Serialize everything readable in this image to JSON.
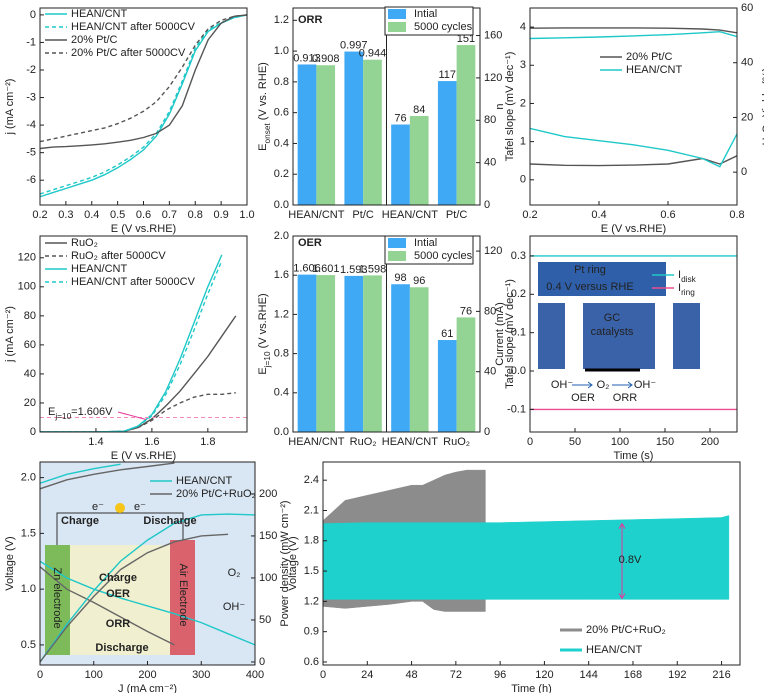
{
  "chart_data": [
    {
      "type": "line",
      "xlabel": "E (V vs.RHE)",
      "ylabel": "j (mA cm⁻²)",
      "x": [
        0.2,
        0.25,
        0.3,
        0.35,
        0.4,
        0.45,
        0.5,
        0.55,
        0.6,
        0.65,
        0.7,
        0.75,
        0.8,
        0.85,
        0.9,
        0.95,
        1.0
      ],
      "xlim": [
        0.2,
        1.0
      ],
      "xticks": [
        0.2,
        0.3,
        0.4,
        0.5,
        0.6,
        0.7,
        0.8,
        0.9,
        {
          "value": 1.0,
          "label": "1.0"
        }
      ],
      "ylim": [
        -6.9,
        0.25
      ],
      "yticks": [
        0,
        -1,
        -2,
        -3,
        -4,
        -5,
        -6
      ],
      "series": [
        {
          "name": "HEAN/CNT",
          "color": "#1fc8c8",
          "dash": false,
          "values": [
            -6.6,
            -6.45,
            -6.3,
            -6.15,
            -6.0,
            -5.8,
            -5.55,
            -5.25,
            -4.9,
            -4.4,
            -3.6,
            -2.5,
            -1.3,
            -0.6,
            -0.3,
            -0.1,
            0
          ]
        },
        {
          "name": "HEAN/CNT after 5000CV",
          "color": "#1fc8c8",
          "dash": true,
          "values": [
            -6.5,
            -6.35,
            -6.2,
            -6.05,
            -5.9,
            -5.7,
            -5.45,
            -5.15,
            -4.8,
            -4.3,
            -3.5,
            -2.4,
            -1.2,
            -0.55,
            -0.28,
            -0.1,
            0
          ]
        },
        {
          "name": "20% Pt/C",
          "color": "#555555",
          "dash": false,
          "values": [
            -4.85,
            -4.8,
            -4.78,
            -4.75,
            -4.72,
            -4.68,
            -4.62,
            -4.55,
            -4.45,
            -4.3,
            -4.0,
            -3.3,
            -2.0,
            -0.9,
            -0.3,
            -0.05,
            0
          ]
        },
        {
          "name": "20% Pt/C after 5000CV",
          "color": "#555555",
          "dash": true,
          "values": [
            -4.6,
            -4.5,
            -4.4,
            -4.3,
            -4.2,
            -4.1,
            -3.95,
            -3.75,
            -3.5,
            -3.15,
            -2.6,
            -1.9,
            -1.1,
            -0.5,
            -0.2,
            -0.05,
            0
          ]
        }
      ]
    },
    {
      "type": "bar",
      "annotations": [
        "ORR"
      ],
      "ylabel": [
        "E",
        {
          "sub": "onset"
        },
        " (V vs. RHE)"
      ],
      "y2label": "Tafel slope (mV dec⁻¹)",
      "categories": [
        "HEAN/CNT",
        "Pt/C",
        "HEAN/CNT",
        "Pt/C"
      ],
      "category_axis": [
        "y",
        "y",
        "y2",
        "y2"
      ],
      "divider": true,
      "ylim": [
        0,
        1.28
      ],
      "yticks": [
        {
          "value": 0,
          "label": "0.0"
        },
        0.2,
        0.4,
        0.6,
        0.8,
        {
          "value": 1,
          "label": "1.0"
        },
        1.2
      ],
      "y2lim": [
        0,
        186
      ],
      "y2ticks": [
        0,
        40,
        80,
        120,
        160
      ],
      "series": [
        {
          "name": "Intial",
          "color": "#3fa9f5",
          "values": [
            0.913,
            0.997,
            76,
            117
          ]
        },
        {
          "name": "5000 cycles",
          "color": "#93d393",
          "values": [
            0.908,
            0.944,
            84,
            151
          ]
        }
      ]
    },
    {
      "type": "line",
      "xlabel": "E (V vs.RHE)",
      "ylabel": "n",
      "y2label": "H₂O₂ Yields (%)",
      "x": [
        0.2,
        0.3,
        0.4,
        0.5,
        0.6,
        0.7,
        0.75,
        0.8
      ],
      "xlim": [
        0.2,
        0.8
      ],
      "xticks": [
        0.2,
        0.4,
        0.6,
        0.8
      ],
      "ylim": [
        -0.66,
        4.5
      ],
      "yticks": [
        0,
        1,
        2,
        3,
        4
      ],
      "y2lim": [
        -12,
        60
      ],
      "y2ticks": [
        0,
        20,
        40,
        60
      ],
      "series": [
        {
          "name": "20% Pt/C",
          "color": "#555555",
          "values": [
            3.97,
            3.98,
            3.98,
            3.98,
            3.97,
            3.95,
            3.92,
            3.85
          ]
        },
        {
          "name": "HEAN/CNT",
          "color": "#1fc8c8",
          "values": [
            3.7,
            3.72,
            3.74,
            3.77,
            3.8,
            3.85,
            3.88,
            3.75
          ]
        },
        {
          "color": "#555555",
          "axis": "y2",
          "values": [
            3.0,
            2.5,
            2.4,
            2.6,
            3.0,
            5.0,
            3.0,
            6.0
          ]
        },
        {
          "color": "#1fc8c8",
          "axis": "y2",
          "values": [
            16,
            13,
            11.5,
            10,
            8,
            5,
            2,
            14
          ]
        }
      ]
    },
    {
      "type": "line",
      "xlabel": "E (V vs.RHE)",
      "ylabel": "j (mA cm⁻²)",
      "annotations": [
        [
          "E",
          {
            "sub": "j=10"
          },
          "=1.606V"
        ]
      ],
      "threshold": 10,
      "x": [
        1.2,
        1.3,
        1.4,
        1.5,
        1.55,
        1.6,
        1.65,
        1.7,
        1.75,
        1.8,
        1.85,
        1.9
      ],
      "xlim": [
        1.2,
        1.94
      ],
      "xticks": [
        1.4,
        1.6,
        1.8
      ],
      "ylim": [
        0,
        135
      ],
      "yticks": [
        0,
        20,
        40,
        60,
        80,
        100,
        120
      ],
      "series": [
        {
          "name": "RuO₂",
          "color": "#555555",
          "dash": false,
          "values": [
            0,
            0,
            0,
            0.5,
            3,
            9,
            18,
            28,
            40,
            52,
            66,
            80
          ]
        },
        {
          "name": "RuO₂ after 5000CV",
          "color": "#555555",
          "dash": true,
          "values": [
            0,
            0,
            0,
            0.5,
            3,
            8,
            15,
            20,
            24,
            26,
            26,
            27
          ]
        },
        {
          "name": "HEAN/CNT",
          "color": "#1fc8c8",
          "dash": false,
          "values": [
            0,
            0,
            0,
            0.5,
            4,
            12,
            28,
            50,
            75,
            100,
            122,
            null
          ]
        },
        {
          "name": "HEAN/CNT after 5000CV",
          "color": "#1fc8c8",
          "dash": true,
          "values": [
            0,
            0,
            0,
            0.5,
            4,
            11,
            26,
            46,
            70,
            95,
            118,
            null
          ]
        }
      ]
    },
    {
      "type": "bar",
      "annotations": [
        "OER"
      ],
      "ylabel": [
        "E",
        {
          "sub": "j=10"
        },
        " (V vs.RHE)"
      ],
      "y2label": "Tafel slope (mV dec⁻¹)",
      "categories": [
        "HEAN/CNT",
        "RuO₂",
        "HEAN/CNT",
        "RuO₂"
      ],
      "category_axis": [
        "y",
        "y",
        "y2",
        "y2"
      ],
      "divider": true,
      "ylim": [
        0,
        2.0
      ],
      "yticks": [
        {
          "value": 0,
          "label": "0.0"
        },
        0.4,
        0.8,
        1.2,
        1.6,
        {
          "value": 2,
          "label": "2.0"
        }
      ],
      "y2lim": [
        0,
        130
      ],
      "y2ticks": [
        0,
        40,
        80,
        120
      ],
      "series": [
        {
          "name": "Intial",
          "color": "#3fa9f5",
          "values": [
            1.606,
            1.593,
            98,
            61
          ]
        },
        {
          "name": "5000 cycles",
          "color": "#93d393",
          "values": [
            1.601,
            1.598,
            96,
            76
          ]
        }
      ]
    },
    {
      "type": "line",
      "xlabel": "Time (s)",
      "ylabel": "Current (mA)",
      "annotations": [
        "Pt ring",
        "0.4 V versus RHE",
        "GC",
        "catalysts",
        "OH⁻",
        "O₂",
        "OH⁻",
        "OER",
        "ORR"
      ],
      "x": [
        0,
        230
      ],
      "xlim": [
        0,
        230
      ],
      "xticks": [
        0,
        50,
        100,
        150,
        200
      ],
      "ylim": [
        -0.159,
        0.352
      ],
      "yticks": [
        -0.1,
        {
          "value": 0,
          "label": "0.0"
        },
        0.1,
        0.2,
        0.3
      ],
      "series": [
        {
          "name": [
            "I",
            {
              "sub": "disk"
            }
          ],
          "color": "#1fc8c8",
          "values": [
            0.3,
            0.3
          ]
        },
        {
          "name": [
            "I",
            {
              "sub": "ring"
            }
          ],
          "color": "#ee4d8f",
          "values": [
            -0.1,
            -0.1
          ]
        }
      ]
    },
    {
      "type": "line",
      "xlabel": "J (mA cm⁻²)",
      "ylabel": "Voltage (V)",
      "y2label": "Power density (mW cm⁻²)",
      "annotations": [
        "e⁻",
        "e⁻",
        "Charge",
        "Discharge",
        "Zn electrode",
        "Air Electrode",
        "Charge",
        "OER",
        "ORR",
        "Discharge",
        "O₂",
        "OH⁻"
      ],
      "x": [
        0,
        50,
        100,
        150,
        200,
        250,
        300,
        350,
        400
      ],
      "xlim": [
        0,
        400
      ],
      "xticks": [
        0,
        100,
        200,
        300,
        400
      ],
      "ylim": [
        0.32,
        2.14
      ],
      "yticks": [
        0.5,
        {
          "value": 1,
          "label": "1.0"
        },
        1.5,
        {
          "value": 2,
          "label": "2.0"
        }
      ],
      "y2lim": [
        -3.6,
        238
      ],
      "y2ticks": [
        0,
        50,
        100,
        150,
        200
      ],
      "series": [
        {
          "name": "HEAN/CNT",
          "color": "#1fc8c8",
          "values": [
            1.95,
            2.03,
            2.08,
            2.12,
            null,
            null,
            null,
            null,
            null
          ]
        },
        {
          "name": "20% Pt/C+RuO₂",
          "color": "#666666",
          "values": [
            1.9,
            1.98,
            2.03,
            2.07,
            2.1,
            2.13,
            null,
            null,
            null
          ]
        },
        {
          "color": "#1fc8c8",
          "values": [
            1.25,
            1.1,
            1.0,
            0.92,
            0.85,
            0.78,
            0.7,
            0.6,
            0.5
          ]
        },
        {
          "color": "#666666",
          "values": [
            1.2,
            1.0,
            0.88,
            0.75,
            0.62,
            0.5,
            null,
            null,
            null
          ]
        },
        {
          "color": "#1fc8c8",
          "axis": "y2",
          "values": [
            0,
            45,
            85,
            120,
            145,
            165,
            175,
            176,
            175
          ]
        },
        {
          "color": "#666666",
          "axis": "y2",
          "values": [
            0,
            42,
            78,
            110,
            130,
            143,
            150,
            152,
            null
          ]
        }
      ]
    },
    {
      "type": "band",
      "xlabel": "Time (h)",
      "ylabel": "Voltage (V)",
      "annotations": [
        "0.8V"
      ],
      "xlim": [
        0,
        226
      ],
      "xticks": [
        0,
        24,
        48,
        72,
        96,
        120,
        144,
        168,
        192,
        216
      ],
      "ylim": [
        0.57,
        2.58
      ],
      "yticks": [
        0.6,
        0.9,
        1.2,
        1.5,
        1.8,
        2.1,
        2.4
      ],
      "series": [
        {
          "name": "20% Pt/C+RuO₂",
          "color": "#8c8c8c",
          "x": [
            0,
            12,
            24,
            36,
            48,
            54,
            60,
            66,
            72,
            78,
            84,
            88
          ],
          "upper": [
            2.0,
            2.2,
            2.25,
            2.3,
            2.35,
            2.35,
            2.4,
            2.45,
            2.48,
            2.5,
            2.5,
            2.5
          ],
          "lower": [
            1.15,
            1.13,
            1.15,
            1.17,
            1.2,
            1.2,
            1.12,
            1.1,
            1.1,
            1.1,
            1.1,
            1.1
          ]
        },
        {
          "name": "HEAN/CNT",
          "color": "#1fd1cc",
          "x": [
            0,
            24,
            48,
            72,
            96,
            120,
            144,
            168,
            192,
            216,
            220
          ],
          "upper": [
            1.97,
            1.98,
            1.98,
            1.98,
            1.98,
            1.99,
            2.0,
            2.01,
            2.02,
            2.03,
            2.05
          ],
          "lower": [
            1.22,
            1.22,
            1.22,
            1.22,
            1.22,
            1.22,
            1.22,
            1.22,
            1.22,
            1.22,
            1.22
          ]
        }
      ]
    }
  ]
}
